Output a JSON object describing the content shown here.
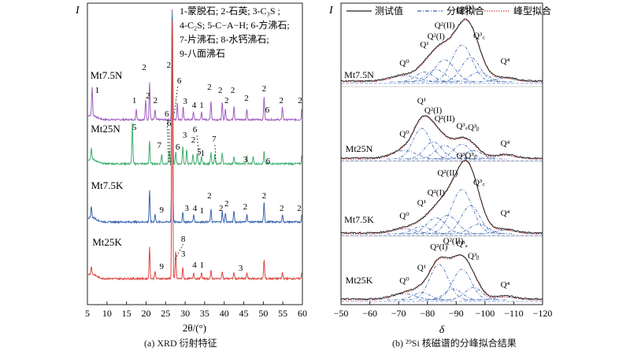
{
  "chart_data": [
    {
      "type": "line",
      "subtitle": "(a) XRD 衍射特征",
      "xlabel": "2θ/(°)",
      "ylabel": "I",
      "xlim": [
        5,
        60
      ],
      "xticks": [
        "5",
        "10",
        "15",
        "20",
        "25",
        "30",
        "35",
        "40",
        "45",
        "50",
        "55",
        "60"
      ],
      "legend_lines": [
        "1-蒙脱石; 2-石英; 3-C₃S ;",
        "4-C₂S; 5-C−A−H; 6-方沸石;",
        "7-片沸石; 8-水钙沸石;",
        "9-八面沸石"
      ],
      "series": [
        {
          "name": "Mt7.5N",
          "color": "#a05fc0",
          "base": 152,
          "peaks": [
            {
              "x": 6.2,
              "h": 36
            },
            {
              "x": 17.5,
              "h": 14
            },
            {
              "x": 19.9,
              "h": 26
            },
            {
              "x": 20.9,
              "h": 48
            },
            {
              "x": 22.3,
              "h": 12
            },
            {
              "x": 26.7,
              "h": 100
            },
            {
              "x": 28.0,
              "h": 22
            },
            {
              "x": 29.5,
              "h": 16
            },
            {
              "x": 32.1,
              "h": 10
            },
            {
              "x": 34.2,
              "h": 10
            },
            {
              "x": 36.6,
              "h": 24
            },
            {
              "x": 39.5,
              "h": 22
            },
            {
              "x": 40.3,
              "h": 14
            },
            {
              "x": 42.5,
              "h": 18
            },
            {
              "x": 45.8,
              "h": 14
            },
            {
              "x": 50.2,
              "h": 30
            },
            {
              "x": 54.9,
              "h": 16
            },
            {
              "x": 59.9,
              "h": 18
            }
          ]
        },
        {
          "name": "Mt25N",
          "color": "#3fae6e",
          "base": 208,
          "peaks": [
            {
              "x": 6.0,
              "h": 14
            },
            {
              "x": 16.5,
              "h": 52
            },
            {
              "x": 20.9,
              "h": 30
            },
            {
              "x": 24.0,
              "h": 12
            },
            {
              "x": 25.9,
              "h": 16
            },
            {
              "x": 26.7,
              "h": 100
            },
            {
              "x": 27.6,
              "h": 16
            },
            {
              "x": 29.4,
              "h": 22
            },
            {
              "x": 30.4,
              "h": 18
            },
            {
              "x": 32.0,
              "h": 12
            },
            {
              "x": 33.1,
              "h": 12
            },
            {
              "x": 34.2,
              "h": 10
            },
            {
              "x": 36.6,
              "h": 14
            },
            {
              "x": 37.6,
              "h": 12
            },
            {
              "x": 39.5,
              "h": 14
            },
            {
              "x": 42.5,
              "h": 10
            },
            {
              "x": 45.8,
              "h": 10
            },
            {
              "x": 47.4,
              "h": 10
            },
            {
              "x": 50.2,
              "h": 16
            },
            {
              "x": 59.9,
              "h": 14
            }
          ]
        },
        {
          "name": "Mt7.5K",
          "color": "#3a64b0",
          "base": 282,
          "peaks": [
            {
              "x": 6.0,
              "h": 14
            },
            {
              "x": 20.9,
              "h": 40
            },
            {
              "x": 22.3,
              "h": 10
            },
            {
              "x": 26.7,
              "h": 100
            },
            {
              "x": 29.4,
              "h": 12
            },
            {
              "x": 32.2,
              "h": 10
            },
            {
              "x": 36.6,
              "h": 16
            },
            {
              "x": 39.5,
              "h": 14
            },
            {
              "x": 40.3,
              "h": 12
            },
            {
              "x": 42.5,
              "h": 14
            },
            {
              "x": 45.8,
              "h": 10
            },
            {
              "x": 50.2,
              "h": 26
            },
            {
              "x": 54.9,
              "h": 10
            },
            {
              "x": 59.9,
              "h": 12
            }
          ]
        },
        {
          "name": "Mt25K",
          "color": "#e0463f",
          "base": 354,
          "peaks": [
            {
              "x": 6.0,
              "h": 10
            },
            {
              "x": 20.9,
              "h": 40
            },
            {
              "x": 22.3,
              "h": 10
            },
            {
              "x": 26.7,
              "h": 100
            },
            {
              "x": 27.6,
              "h": 36
            },
            {
              "x": 29.4,
              "h": 14
            },
            {
              "x": 32.2,
              "h": 8
            },
            {
              "x": 34.2,
              "h": 8
            },
            {
              "x": 36.6,
              "h": 10
            },
            {
              "x": 39.5,
              "h": 10
            },
            {
              "x": 42.5,
              "h": 8
            },
            {
              "x": 45.8,
              "h": 8
            },
            {
              "x": 50.2,
              "h": 24
            },
            {
              "x": 54.9,
              "h": 8
            },
            {
              "x": 59.9,
              "h": 12
            }
          ]
        }
      ],
      "annotations": [
        {
          "t": "1",
          "x": 7.5,
          "y": 118
        },
        {
          "t": "1",
          "x": 17.0,
          "y": 131
        },
        {
          "t": "2",
          "x": 19.5,
          "y": 89
        },
        {
          "t": "2",
          "x": 20.5,
          "y": 125
        },
        {
          "t": "2",
          "x": 22.4,
          "y": 131
        },
        {
          "t": "2",
          "x": 25.8,
          "y": 86
        },
        {
          "t": "6",
          "x": 28.5,
          "y": 106
        },
        {
          "t": "3",
          "x": 30.0,
          "y": 132
        },
        {
          "t": "4",
          "x": 32.3,
          "y": 137
        },
        {
          "t": "1",
          "x": 34.2,
          "y": 137
        },
        {
          "t": "2",
          "x": 36.2,
          "y": 114
        },
        {
          "t": "2",
          "x": 39.0,
          "y": 118
        },
        {
          "t": "2",
          "x": 40.6,
          "y": 131
        },
        {
          "t": "2",
          "x": 42.2,
          "y": 118
        },
        {
          "t": "2",
          "x": 45.7,
          "y": 128
        },
        {
          "t": "2",
          "x": 50.2,
          "y": 116
        },
        {
          "t": "6",
          "x": 51.0,
          "y": 143
        },
        {
          "t": "2",
          "x": 54.6,
          "y": 131
        },
        {
          "t": "2",
          "x": 59.4,
          "y": 131
        },
        {
          "t": "5",
          "x": 17.0,
          "y": 165
        },
        {
          "t": "6",
          "x": 25.3,
          "y": 148
        },
        {
          "t": "6",
          "x": 25.9,
          "y": 160
        },
        {
          "t": "7",
          "x": 23.4,
          "y": 188
        },
        {
          "t": "6",
          "x": 28.1,
          "y": 190
        },
        {
          "t": "3",
          "x": 29.9,
          "y": 175
        },
        {
          "t": "6",
          "x": 32.5,
          "y": 168
        },
        {
          "t": "2",
          "x": 32.1,
          "y": 181
        },
        {
          "t": "5",
          "x": 33.6,
          "y": 196
        },
        {
          "t": "1",
          "x": 34.5,
          "y": 198
        },
        {
          "t": "7",
          "x": 37.4,
          "y": 180
        },
        {
          "t": "3",
          "x": 45.4,
          "y": 206
        },
        {
          "t": "6",
          "x": 51.2,
          "y": 208
        },
        {
          "t": "2",
          "x": 36.2,
          "y": 252
        },
        {
          "t": "2",
          "x": 39.2,
          "y": 268
        },
        {
          "t": "2",
          "x": 40.6,
          "y": 262
        },
        {
          "t": "2",
          "x": 45.4,
          "y": 266
        },
        {
          "t": "2",
          "x": 50.2,
          "y": 252
        },
        {
          "t": "2",
          "x": 54.7,
          "y": 268
        },
        {
          "t": "2",
          "x": 59.2,
          "y": 268
        },
        {
          "t": "9",
          "x": 24.0,
          "y": 270
        },
        {
          "t": "3",
          "x": 30.4,
          "y": 268
        },
        {
          "t": "4",
          "x": 32.5,
          "y": 268
        },
        {
          "t": "1",
          "x": 34.3,
          "y": 271
        },
        {
          "t": "3",
          "x": 29.5,
          "y": 326
        },
        {
          "t": "9",
          "x": 24.0,
          "y": 342
        },
        {
          "t": "4",
          "x": 32.4,
          "y": 340
        },
        {
          "t": "1",
          "x": 34.3,
          "y": 340
        },
        {
          "t": "3",
          "x": 44.2,
          "y": 344
        },
        {
          "t": "8",
          "x": 29.5,
          "y": 307
        }
      ]
    },
    {
      "type": "line",
      "subtitle": "(b) ²⁹Si 核磁谱的分峰拟合结果",
      "xlabel": "δ",
      "ylabel": "I",
      "xlim": [
        -50,
        -120
      ],
      "xticks": [
        "−50",
        "−60",
        "−70",
        "−80",
        "−90",
        "−100",
        "−110",
        "−120"
      ],
      "legend": [
        "测试值",
        "分峰拟合",
        "峰型拟合"
      ],
      "colors": {
        "measured": "#222222",
        "components": "#3a64b0",
        "fit": "#d04545"
      },
      "series": [
        {
          "name": "Mt7.5N",
          "base": 104,
          "peaks": [
            {
              "label": "Q⁰",
              "c": -72,
              "h": 0.1,
              "w": 4.5
            },
            {
              "label": "Q¹",
              "c": -79,
              "h": 0.16,
              "w": 3.0
            },
            {
              "label": "Q²(I)",
              "c": -83,
              "h": 0.2,
              "w": 3.2
            },
            {
              "label": "Q²(II)",
              "c": -86,
              "h": 0.36,
              "w": 3.5
            },
            {
              "label": "Q³ₐ",
              "c": -92,
              "h": 0.6,
              "w": 3.5
            },
            {
              "label": "Q³ᵦ",
              "c": -95,
              "h": 0.4,
              "w": 3.2
            },
            {
              "label": "Q³꜀",
              "c": -98,
              "h": 0.16,
              "w": 3.2
            },
            {
              "label": "Q⁴",
              "c": -107,
              "h": 0.06,
              "w": 3.5
            }
          ]
        },
        {
          "name": "Mt25N",
          "base": 202,
          "peaks": [
            {
              "label": "Q⁰",
              "c": -72,
              "h": 0.14,
              "w": 4.0
            },
            {
              "label": "Q¹",
              "c": -78,
              "h": 0.5,
              "w": 3.0
            },
            {
              "label": "Q²(I)",
              "c": -82,
              "h": 0.28,
              "w": 3.0
            },
            {
              "label": "Q²(II)",
              "c": -86,
              "h": 0.22,
              "w": 3.2
            },
            {
              "label": "Q³ₐ",
              "c": -92,
              "h": 0.24,
              "w": 3.0
            },
            {
              "label": "Q³ᵦ",
              "c": -96,
              "h": 0.14,
              "w": 3.0
            },
            {
              "label": "Q⁴",
              "c": -107,
              "h": 0.06,
              "w": 3.5
            }
          ]
        },
        {
          "name": "Mt7.5K",
          "base": 297,
          "peaks": [
            {
              "label": "Q⁰",
              "c": -72,
              "h": 0.08,
              "w": 4.0
            },
            {
              "label": "Q¹",
              "c": -78,
              "h": 0.12,
              "w": 3.0
            },
            {
              "label": "Q²(I)",
              "c": -83,
              "h": 0.26,
              "w": 3.2
            },
            {
              "label": "Q²(II)",
              "c": -87,
              "h": 0.3,
              "w": 3.4
            },
            {
              "label": "Q³ₐ",
              "c": -92,
              "h": 0.72,
              "w": 3.6
            },
            {
              "label": "Q³ᵦ",
              "c": -95,
              "h": 0.46,
              "w": 3.2
            },
            {
              "label": "Q³꜀",
              "c": -98,
              "h": 0.16,
              "w": 3.2
            },
            {
              "label": "Q⁴",
              "c": -107,
              "h": 0.06,
              "w": 3.5
            }
          ]
        },
        {
          "name": "Mt25K",
          "base": 381,
          "peaks": [
            {
              "label": "Q⁰",
              "c": -72,
              "h": 0.1,
              "w": 4.0
            },
            {
              "label": "Q¹",
              "c": -78,
              "h": 0.12,
              "w": 3.0
            },
            {
              "label": "Q²(I)",
              "c": -84,
              "h": 0.58,
              "w": 3.2
            },
            {
              "label": "Q²(II)",
              "c": -89,
              "h": 0.18,
              "w": 3.0
            },
            {
              "label": "Q³ₐ",
              "c": -92,
              "h": 0.5,
              "w": 3.2
            },
            {
              "label": "Q³ᵦ",
              "c": -96,
              "h": 0.2,
              "w": 3.0
            },
            {
              "label": "Q⁴",
              "c": -107,
              "h": 0.05,
              "w": 3.5
            }
          ]
        }
      ]
    }
  ]
}
